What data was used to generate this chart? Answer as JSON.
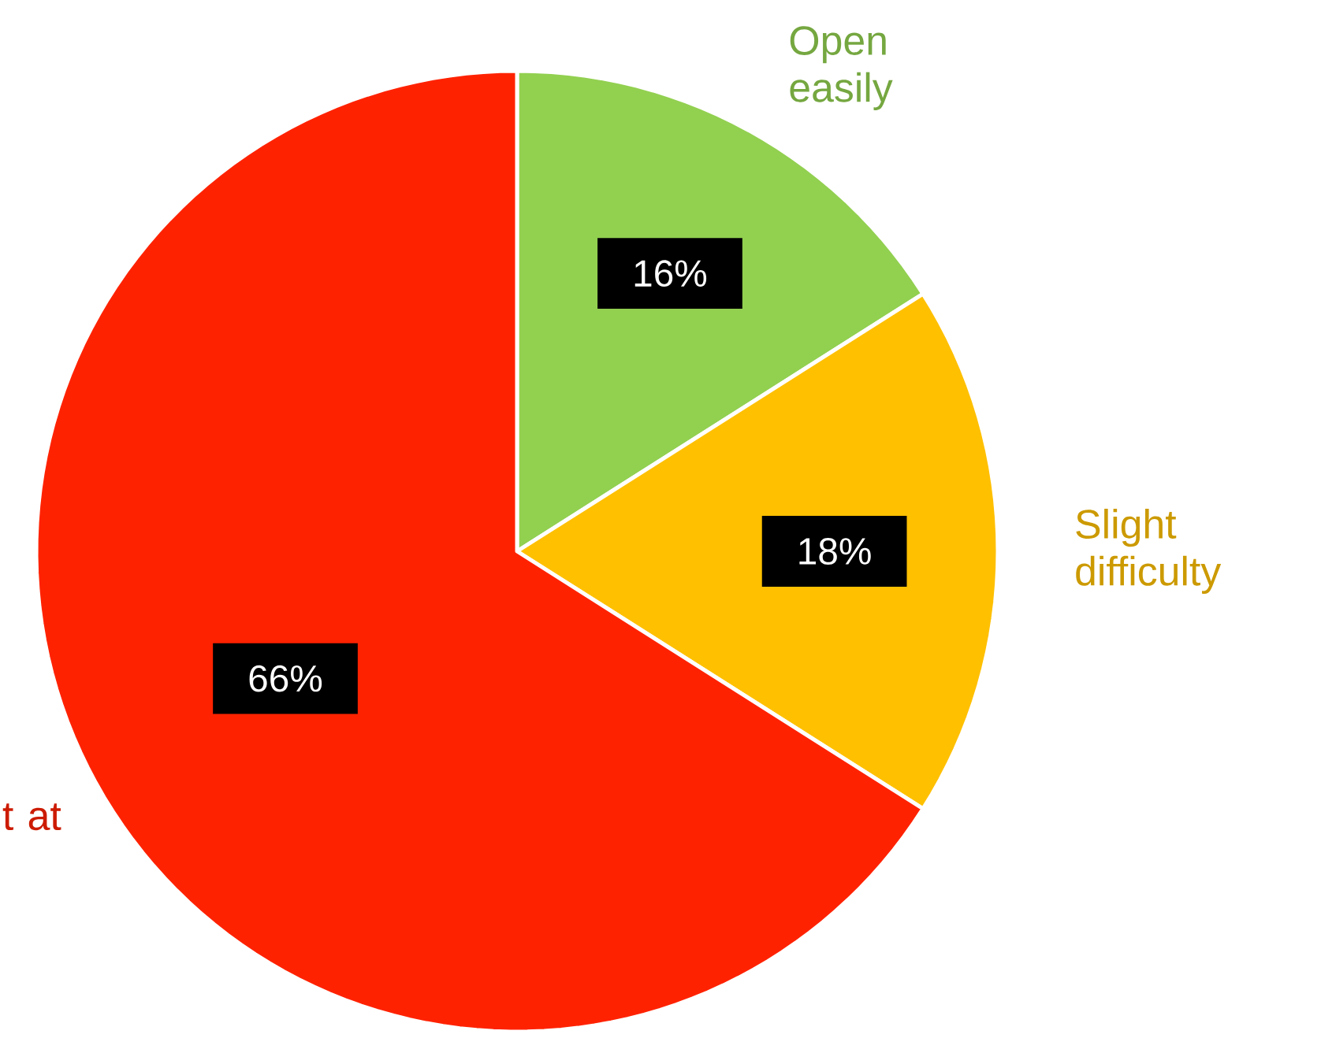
{
  "chart_data": {
    "type": "pie",
    "categories": [
      "Open easily",
      "Slight difficulty",
      "t at"
    ],
    "values": [
      16,
      18,
      66
    ],
    "colors": [
      "#92d050",
      "#ffc000",
      "#ff2200"
    ],
    "value_labels": [
      "16%",
      "18%",
      "66%"
    ]
  }
}
